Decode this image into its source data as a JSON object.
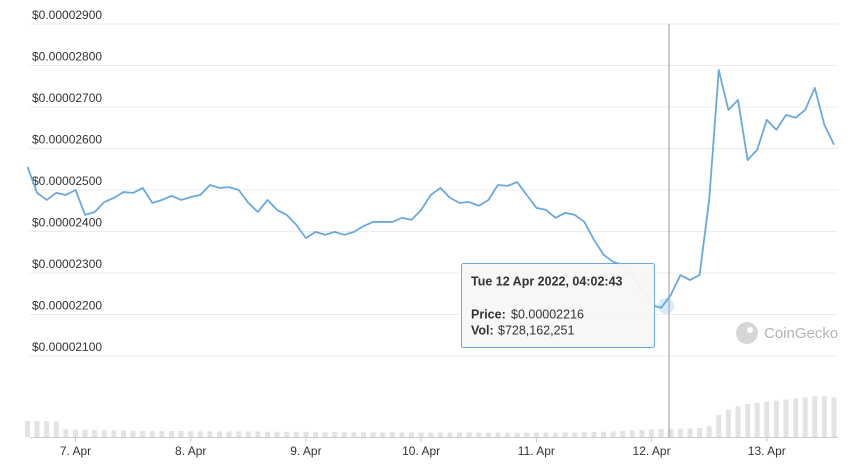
{
  "chart_data": {
    "type": "line",
    "series": [
      {
        "name": "Price",
        "color": "#68a9e0",
        "values": [
          2.556e-05,
          2.493e-05,
          2.476e-05,
          2.493e-05,
          2.488e-05,
          2.5e-05,
          2.44e-05,
          2.447e-05,
          2.471e-05,
          2.481e-05,
          2.495e-05,
          2.493e-05,
          2.505e-05,
          2.469e-05,
          2.476e-05,
          2.486e-05,
          2.476e-05,
          2.483e-05,
          2.488e-05,
          2.512e-05,
          2.505e-05,
          2.507e-05,
          2.5e-05,
          2.469e-05,
          2.447e-05,
          2.476e-05,
          2.452e-05,
          2.44e-05,
          2.416e-05,
          2.384e-05,
          2.399e-05,
          2.392e-05,
          2.399e-05,
          2.392e-05,
          2.399e-05,
          2.413e-05,
          2.423e-05,
          2.423e-05,
          2.423e-05,
          2.433e-05,
          2.428e-05,
          2.452e-05,
          2.488e-05,
          2.505e-05,
          2.481e-05,
          2.469e-05,
          2.471e-05,
          2.462e-05,
          2.476e-05,
          2.512e-05,
          2.51e-05,
          2.519e-05,
          2.488e-05,
          2.457e-05,
          2.452e-05,
          2.433e-05,
          2.445e-05,
          2.44e-05,
          2.423e-05,
          2.38e-05,
          2.344e-05,
          2.327e-05,
          2.319e-05,
          2.295e-05,
          2.259e-05,
          2.223e-05,
          2.216e-05,
          2.247e-05,
          2.295e-05,
          2.283e-05,
          2.295e-05,
          2.476e-05,
          2.789e-05,
          2.693e-05,
          2.717e-05,
          2.572e-05,
          2.597e-05,
          2.669e-05,
          2.645e-05,
          2.681e-05,
          2.674e-05,
          2.693e-05,
          2.746e-05,
          2.657e-05,
          2.609e-05
        ]
      },
      {
        "name": "Vol",
        "color": "#e3e3e3",
        "axis": "y2",
        "values": [
          1450000000,
          1450000000,
          1450000000,
          1400000000,
          700000000,
          680000000,
          650000000,
          650000000,
          620000000,
          600000000,
          600000000,
          560000000,
          560000000,
          550000000,
          550000000,
          540000000,
          540000000,
          530000000,
          520000000,
          520000000,
          520000000,
          510000000,
          500000000,
          500000000,
          500000000,
          480000000,
          480000000,
          470000000,
          460000000,
          460000000,
          450000000,
          450000000,
          450000000,
          440000000,
          440000000,
          440000000,
          430000000,
          430000000,
          430000000,
          430000000,
          420000000,
          420000000,
          420000000,
          420000000,
          420000000,
          410000000,
          410000000,
          410000000,
          410000000,
          400000000,
          400000000,
          400000000,
          400000000,
          400000000,
          400000000,
          400000000,
          410000000,
          420000000,
          430000000,
          450000000,
          480000000,
          520000000,
          560000000,
          600000000,
          650000000,
          700000000,
          728162251,
          740000000,
          760000000,
          780000000,
          820000000,
          1000000000,
          2000000000,
          2500000000,
          2800000000,
          3000000000,
          3100000000,
          3200000000,
          3300000000,
          3400000000,
          3500000000,
          3600000000,
          3700000000,
          3700000000,
          3600000000
        ]
      }
    ],
    "xlim": [
      0,
      84
    ],
    "xticks": [
      {
        "value": 5,
        "label": "7. Apr"
      },
      {
        "value": 17,
        "label": "8. Apr"
      },
      {
        "value": 29,
        "label": "9. Apr"
      },
      {
        "value": 41,
        "label": "10. Apr"
      },
      {
        "value": 53,
        "label": "11. Apr"
      },
      {
        "value": 65,
        "label": "12. Apr"
      },
      {
        "value": 77,
        "label": "13. Apr"
      }
    ],
    "ylim": [
      2.1e-05,
      2.9e-05
    ],
    "yticks": [
      {
        "value": 2.9e-05,
        "label": "$0.00002900"
      },
      {
        "value": 2.8e-05,
        "label": "$0.00002800"
      },
      {
        "value": 2.7e-05,
        "label": "$0.00002700"
      },
      {
        "value": 2.6e-05,
        "label": "$0.00002600"
      },
      {
        "value": 2.5e-05,
        "label": "$0.00002500"
      },
      {
        "value": 2.4e-05,
        "label": "$0.00002400"
      },
      {
        "value": 2.3e-05,
        "label": "$0.00002300"
      },
      {
        "value": 2.2e-05,
        "label": "$0.00002200"
      },
      {
        "value": 2.1e-05,
        "label": "$0.00002100"
      }
    ],
    "y2lim": [
      0,
      4000000000
    ],
    "grid": true,
    "tooltip": {
      "title": "Tue 12 Apr 2022, 04:02:43",
      "price_label": "Price:",
      "price": "$0.00002216",
      "vol_label": "Vol:",
      "vol": "$728,162,251"
    },
    "watermark": "CoinGecko"
  }
}
